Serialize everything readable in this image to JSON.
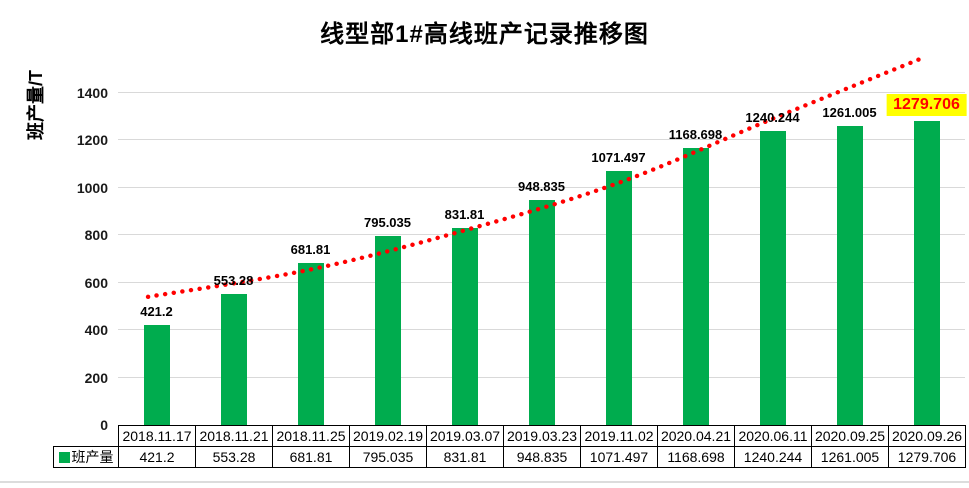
{
  "chart_data": {
    "type": "bar",
    "title": "线型部1#高线班产记录推移图",
    "ylabel": "班产量/T",
    "categories": [
      "2018.11.17",
      "2018.11.21",
      "2018.11.25",
      "2019.02.19",
      "2019.03.07",
      "2019.03.23",
      "2019.11.02",
      "2020.04.21",
      "2020.06.11",
      "2020.09.25",
      "2020.09.26"
    ],
    "series": [
      {
        "name": "班产量",
        "values": [
          421.2,
          553.28,
          681.81,
          795.035,
          831.81,
          948.835,
          1071.497,
          1168.698,
          1240.244,
          1261.005,
          1279.706
        ],
        "color": "#00AC4E"
      }
    ],
    "value_labels": [
      "421.2",
      "553.28",
      "681.81",
      "795.035",
      "831.81",
      "948.835",
      "1071.497",
      "1168.698",
      "1240.244",
      "1261.005",
      "1279.706"
    ],
    "highlight": {
      "index": 10,
      "background": "#FFFF00",
      "text_color": "#FF0000"
    },
    "y_ticks": [
      0,
      200,
      400,
      600,
      800,
      1000,
      1200,
      1400
    ],
    "ylim": [
      0,
      1500
    ],
    "grid": true,
    "gridline_color": "#D9D9D9",
    "legend": {
      "label": "班产量",
      "marker_color": "#00AC4E",
      "position": "table-left"
    },
    "trendline": {
      "color": "#FF0000",
      "style": "dotted",
      "points_index_value": [
        [
          -0.11,
          540
        ],
        [
          2,
          655
        ],
        [
          4,
          820
        ],
        [
          6,
          1020
        ],
        [
          8,
          1290
        ],
        [
          9.9,
          1540
        ]
      ]
    },
    "data_table_shown": true
  }
}
